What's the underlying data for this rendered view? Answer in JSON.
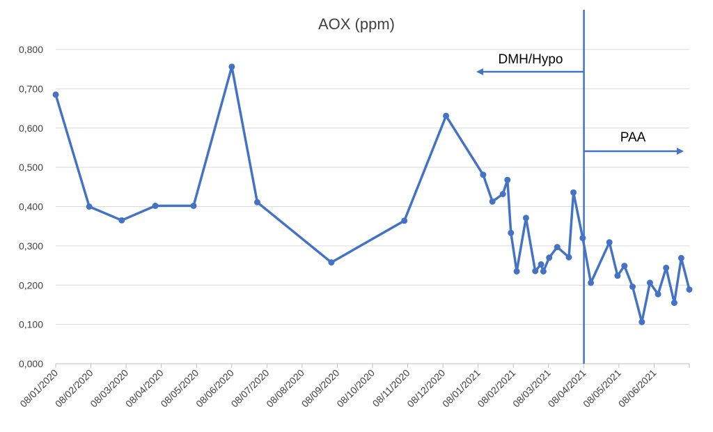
{
  "chart_data": {
    "type": "line",
    "title": "AOX (ppm)",
    "xlabel": "",
    "ylabel": "",
    "ylim": [
      0,
      0.8
    ],
    "y_ticks": [
      "0,000",
      "0,100",
      "0,200",
      "0,300",
      "0,400",
      "0,500",
      "0,600",
      "0,700",
      "0,800"
    ],
    "x_ticks": [
      "08/01/2020",
      "08/02/2020",
      "08/03/2020",
      "08/04/2020",
      "08/05/2020",
      "08/06/2020",
      "08/07/2020",
      "08/08/2020",
      "08/09/2020",
      "08/10/2020",
      "08/11/2020",
      "08/12/2020",
      "08/01/2021",
      "08/02/2021",
      "08/03/2021",
      "08/04/2021",
      "08/05/2021",
      "08/06/2021"
    ],
    "xlim": [
      "2020-01-08",
      "2021-07-08"
    ],
    "grid": true,
    "series": [
      {
        "color": "#4472c4",
        "points": [
          {
            "x": "2020-01-08",
            "y": 0.685
          },
          {
            "x": "2020-02-06",
            "y": 0.4
          },
          {
            "x": "2020-03-05",
            "y": 0.365
          },
          {
            "x": "2020-04-03",
            "y": 0.402
          },
          {
            "x": "2020-05-06",
            "y": 0.402
          },
          {
            "x": "2020-06-08",
            "y": 0.756
          },
          {
            "x": "2020-06-30",
            "y": 0.411
          },
          {
            "x": "2020-09-02",
            "y": 0.258
          },
          {
            "x": "2020-11-04",
            "y": 0.364
          },
          {
            "x": "2020-12-10",
            "y": 0.631
          },
          {
            "x": "2021-01-11",
            "y": 0.481
          },
          {
            "x": "2021-01-19",
            "y": 0.413
          },
          {
            "x": "2021-01-28",
            "y": 0.432
          },
          {
            "x": "2021-02-01",
            "y": 0.468
          },
          {
            "x": "2021-02-04",
            "y": 0.333
          },
          {
            "x": "2021-02-09",
            "y": 0.235
          },
          {
            "x": "2021-02-17",
            "y": 0.371
          },
          {
            "x": "2021-02-25",
            "y": 0.236
          },
          {
            "x": "2021-03-02",
            "y": 0.253
          },
          {
            "x": "2021-03-04",
            "y": 0.235
          },
          {
            "x": "2021-03-09",
            "y": 0.27
          },
          {
            "x": "2021-03-16",
            "y": 0.297
          },
          {
            "x": "2021-03-26",
            "y": 0.271
          },
          {
            "x": "2021-03-30",
            "y": 0.436
          },
          {
            "x": "2021-04-07",
            "y": 0.32
          },
          {
            "x": "2021-04-14",
            "y": 0.206
          },
          {
            "x": "2021-04-30",
            "y": 0.309
          },
          {
            "x": "2021-05-07",
            "y": 0.224
          },
          {
            "x": "2021-05-13",
            "y": 0.249
          },
          {
            "x": "2021-05-20",
            "y": 0.196
          },
          {
            "x": "2021-05-28",
            "y": 0.106
          },
          {
            "x": "2021-06-04",
            "y": 0.206
          },
          {
            "x": "2021-06-11",
            "y": 0.177
          },
          {
            "x": "2021-06-18",
            "y": 0.244
          },
          {
            "x": "2021-06-25",
            "y": 0.155
          },
          {
            "x": "2021-07-01",
            "y": 0.269
          },
          {
            "x": "2021-07-08",
            "y": 0.189
          }
        ]
      }
    ],
    "annotations": [
      {
        "text": "DMH/Hypo",
        "direction": "left"
      },
      {
        "text": "PAA",
        "direction": "right"
      }
    ],
    "divider_x": "2021-04-08"
  }
}
